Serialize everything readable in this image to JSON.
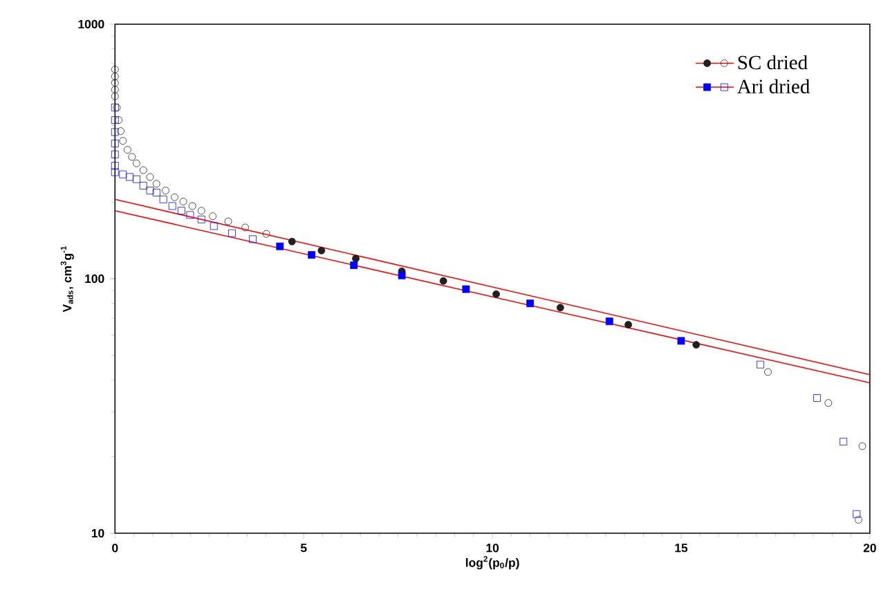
{
  "chart_data": {
    "type": "scatter",
    "xlabel": "log$^{2}$(p$_{0}$/p)",
    "ylabel": "V$_{ads}$, cm$^{3}$g$^{-1}$",
    "log": "y",
    "xlim": [
      0,
      20
    ],
    "ylim": [
      10,
      1000
    ],
    "xticks": [
      0,
      5,
      10,
      15,
      20
    ],
    "yticks": [
      10,
      100,
      1000
    ],
    "legend": "top right",
    "series": [
      {
        "name": "SC dried",
        "color": "#202020",
        "marker": "circle",
        "x": [
          4.69,
          5.47,
          6.38,
          7.6,
          8.7,
          10.1,
          11.8,
          13.6,
          15.4
        ],
        "values": [
          140,
          129,
          120,
          107,
          98,
          87,
          77,
          66,
          55
        ]
      },
      {
        "name": "Ari dried",
        "color": "#0000ff",
        "marker": "square",
        "x": [
          4.37,
          5.21,
          6.33,
          7.6,
          9.3,
          11.0,
          13.1,
          15.0
        ],
        "values": [
          134,
          124,
          113,
          103,
          91,
          80,
          68,
          57
        ]
      },
      {
        "color": "#202020",
        "marker": "circle",
        "x": [
          0,
          0,
          0,
          0,
          0,
          0.05,
          0.1,
          0.15,
          0.21,
          0.33,
          0.45,
          0.57,
          0.75,
          0.93,
          1.1,
          1.34,
          1.58,
          1.81,
          2.05,
          2.29,
          2.59,
          3.0,
          3.45,
          4.01,
          17.3,
          18.9,
          19.8,
          19.7
        ],
        "values": [
          664,
          623,
          588,
          553,
          521,
          470,
          420,
          380,
          348,
          321,
          301,
          284,
          267,
          251,
          236,
          222,
          209,
          201,
          193,
          185,
          176,
          168,
          159,
          150,
          43,
          32.5,
          22,
          11.3
        ]
      },
      {
        "color": "#0000ff",
        "marker": "square",
        "x": [
          0,
          0,
          0,
          0,
          0,
          0,
          0,
          0.21,
          0.39,
          0.57,
          0.75,
          0.93,
          1.1,
          1.28,
          1.52,
          1.76,
          1.99,
          2.29,
          2.62,
          3.1,
          3.65,
          17.1,
          18.6,
          19.3,
          19.65
        ],
        "values": [
          471,
          420,
          377,
          340,
          308,
          278,
          262,
          257,
          251,
          246,
          232,
          222,
          218,
          205,
          193,
          185,
          178,
          171,
          161,
          151,
          143,
          46,
          34,
          22.9,
          11.9
        ]
      },
      {
        "type": "line",
        "color": "#ff0000",
        "x": [
          0,
          20
        ],
        "values": [
          205,
          42
        ]
      },
      {
        "type": "line",
        "color": "#ff0000",
        "x": [
          0,
          20
        ],
        "values": [
          185,
          39
        ]
      }
    ]
  }
}
